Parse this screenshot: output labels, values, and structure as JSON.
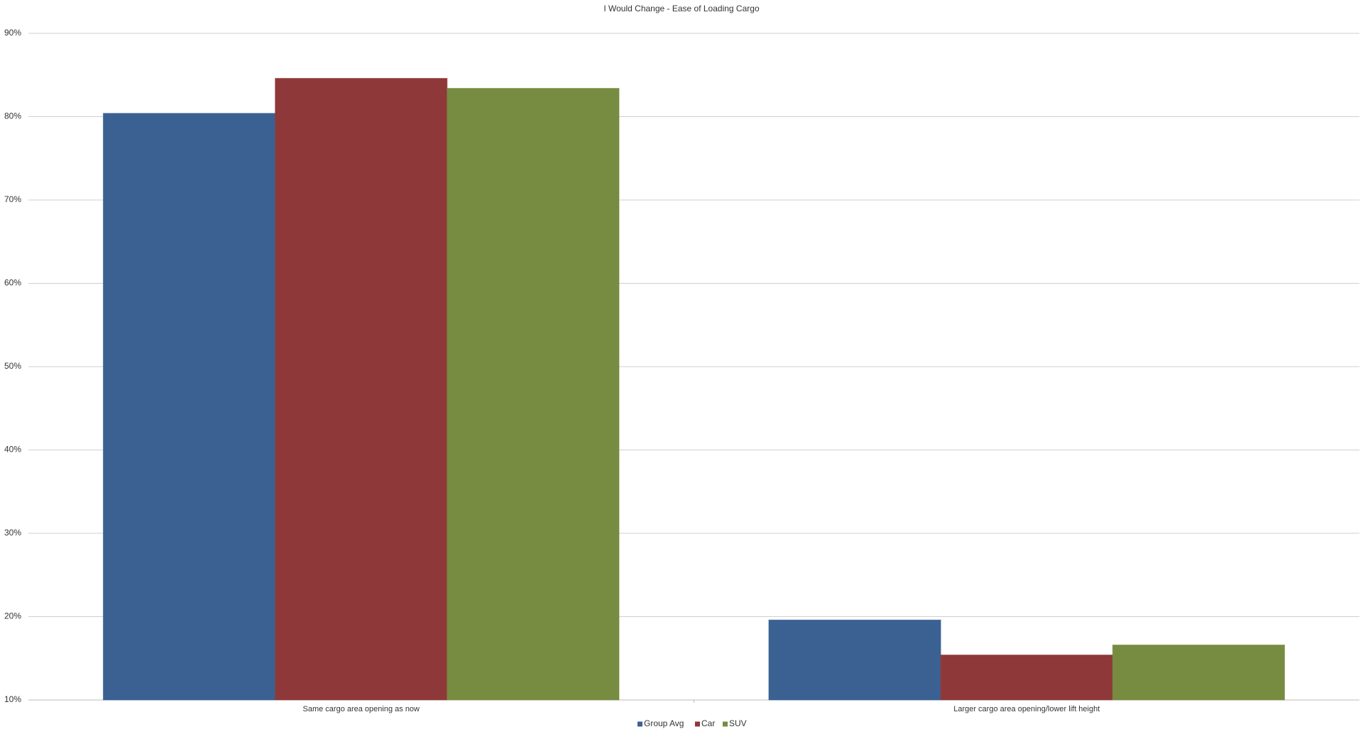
{
  "chart_data": {
    "type": "bar",
    "title": "I Would Change - Ease of Loading Cargo",
    "categories": [
      "Same cargo area opening as now",
      "Larger cargo area opening/lower lift height"
    ],
    "series": [
      {
        "name": "Group Avg",
        "color": "#3a6192",
        "values": [
          80.4,
          19.6
        ]
      },
      {
        "name": "Car",
        "color": "#8f3839",
        "values": [
          84.6,
          15.4
        ]
      },
      {
        "name": "SUV",
        "color": "#778c40",
        "values": [
          83.4,
          16.6
        ]
      }
    ],
    "ylim": [
      10,
      90
    ],
    "yticks": [
      {
        "value": 10,
        "label": "10%"
      },
      {
        "value": 20,
        "label": "20%"
      },
      {
        "value": 30,
        "label": "30%"
      },
      {
        "value": 40,
        "label": "40%"
      },
      {
        "value": 50,
        "label": "50%"
      },
      {
        "value": 60,
        "label": "60%"
      },
      {
        "value": 70,
        "label": "70%"
      },
      {
        "value": 80,
        "label": "80%"
      },
      {
        "value": 90,
        "label": "90%"
      }
    ],
    "grid": true,
    "legend": "bottom"
  }
}
